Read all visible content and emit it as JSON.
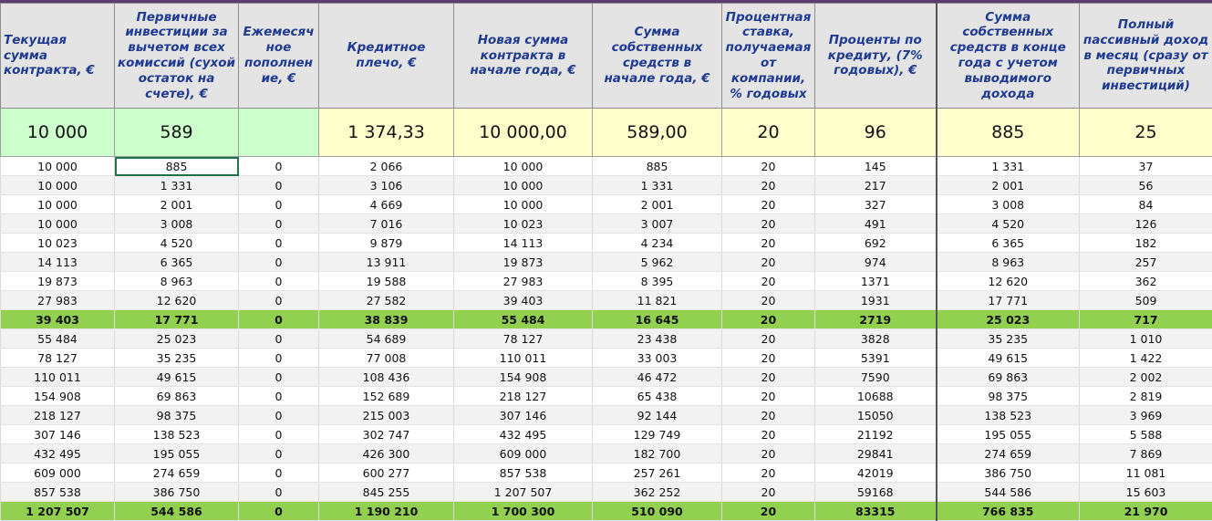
{
  "headers": [
    "Текущая сумма контракта, €",
    "Первичные инвестиции за вычетом всех комиссий (сухой остаток на счете), €",
    "Ежемесячное пополнение, €",
    "Кредитное плечо, €",
    "Новая сумма контракта в начале года, €",
    "Сумма собственных средств в начале года, €",
    "Процентная ставка, получаемая от компании, % годовых",
    "Проценты по кредиту, (7% годовых), €",
    "Сумма собственных средств в конце года с учетом выводимого дохода",
    "Полный пассивный доход в месяц (сразу от первичных инвестиций)"
  ],
  "header_display": [
    "Текущая сумма контракта, €",
    "Первичные инвестиции за вычетом всех комиссий (сухой остаток на счете), €",
    "Ежемесяч ное пополнен ие, €",
    "Кредитное плечо, €",
    "Новая сумма контракта в начале года, €",
    "Сумма собственных средств в начале года, €",
    "Процентная ставка, получаемая от компании, % годовых",
    "Проценты по кредиту, (7% годовых), €",
    "Сумма собственных средств в конце года с учетом выводимого дохода",
    "Полный пассивный доход в месяц (сразу от первичных инвестиций)"
  ],
  "first_row": [
    "10 000",
    "589",
    "",
    "1 374,33",
    "10 000,00",
    "589,00",
    "20",
    "96",
    "885",
    "25"
  ],
  "rows": [
    [
      "10 000",
      "885",
      "0",
      "2 066",
      "10 000",
      "885",
      "20",
      "145",
      "1 331",
      "37"
    ],
    [
      "10 000",
      "1 331",
      "0",
      "3 106",
      "10 000",
      "1 331",
      "20",
      "217",
      "2 001",
      "56"
    ],
    [
      "10 000",
      "2 001",
      "0",
      "4 669",
      "10 000",
      "2 001",
      "20",
      "327",
      "3 008",
      "84"
    ],
    [
      "10 000",
      "3 008",
      "0",
      "7 016",
      "10 023",
      "3 007",
      "20",
      "491",
      "4 520",
      "126"
    ],
    [
      "10 023",
      "4 520",
      "0",
      "9 879",
      "14 113",
      "4 234",
      "20",
      "692",
      "6 365",
      "182"
    ],
    [
      "14 113",
      "6 365",
      "0",
      "13 911",
      "19 873",
      "5 962",
      "20",
      "974",
      "8 963",
      "257"
    ],
    [
      "19 873",
      "8 963",
      "0",
      "19 588",
      "27 983",
      "8 395",
      "20",
      "1371",
      "12 620",
      "362"
    ],
    [
      "27 983",
      "12 620",
      "0",
      "27 582",
      "39 403",
      "11 821",
      "20",
      "1931",
      "17 771",
      "509"
    ],
    [
      "39 403",
      "17 771",
      "0",
      "38 839",
      "55 484",
      "16 645",
      "20",
      "2719",
      "25 023",
      "717"
    ],
    [
      "55 484",
      "25 023",
      "0",
      "54 689",
      "78 127",
      "23 438",
      "20",
      "3828",
      "35 235",
      "1 010"
    ],
    [
      "78 127",
      "35 235",
      "0",
      "77 008",
      "110 011",
      "33 003",
      "20",
      "5391",
      "49 615",
      "1 422"
    ],
    [
      "110 011",
      "49 615",
      "0",
      "108 436",
      "154 908",
      "46 472",
      "20",
      "7590",
      "69 863",
      "2 002"
    ],
    [
      "154 908",
      "69 863",
      "0",
      "152 689",
      "218 127",
      "65 438",
      "20",
      "10688",
      "98 375",
      "2 819"
    ],
    [
      "218 127",
      "98 375",
      "0",
      "215 003",
      "307 146",
      "92 144",
      "20",
      "15050",
      "138 523",
      "3 969"
    ],
    [
      "307 146",
      "138 523",
      "0",
      "302 747",
      "432 495",
      "129 749",
      "20",
      "21192",
      "195 055",
      "5 588"
    ],
    [
      "432 495",
      "195 055",
      "0",
      "426 300",
      "609 000",
      "182 700",
      "20",
      "29841",
      "274 659",
      "7 869"
    ],
    [
      "609 000",
      "274 659",
      "0",
      "600 277",
      "857 538",
      "257 261",
      "20",
      "42019",
      "386 750",
      "11 081"
    ],
    [
      "857 538",
      "386 750",
      "0",
      "845 255",
      "1 207 507",
      "362 252",
      "20",
      "59168",
      "544 586",
      "15 603"
    ],
    [
      "1 207 507",
      "544 586",
      "0",
      "1 190 210",
      "1 700 300",
      "510 090",
      "20",
      "83315",
      "766 835",
      "21 970"
    ]
  ],
  "highlight_rows": [
    8,
    18
  ],
  "selected_cell": {
    "row": 0,
    "col": 1
  },
  "colors": {
    "header_bg": "#e4e4e4",
    "header_text": "#1f3a93",
    "input_green": "#ccffcc",
    "input_yellow": "#ffffcc",
    "highlight_green": "#92d050",
    "selection": "#217346"
  }
}
